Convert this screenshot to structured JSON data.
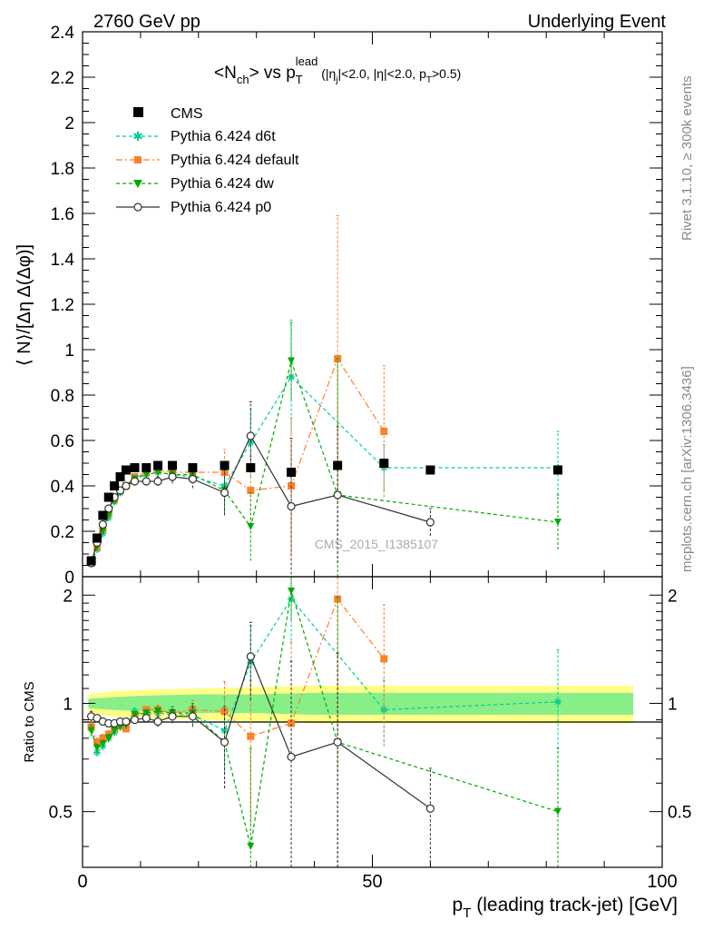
{
  "header": {
    "left": "2760 GeV pp",
    "right": "Underlying Event",
    "rivet": "Rivet 3.1.10, ≥ 300k events",
    "mcplots": "mcplots.cern.ch [arXiv:1306.3436]",
    "watermark": "CMS_2015_I1385107"
  },
  "chart_data": [
    {
      "panel": "main",
      "type": "line",
      "title": {
        "a": "<N",
        "a_sub": "ch",
        "b": "> vs p",
        "b_sub": "T",
        "b_sup": "lead",
        "c1": " (|η",
        "c1_sub": "j",
        "c2": "|<2.0, |η|<2.0, p",
        "c2_sub": "T",
        "c3": ">0.5)"
      },
      "ylabel": "⟨ N⟩/[Δη Δ(Δφ)]",
      "xlim": [
        0,
        100
      ],
      "ylim": [
        0,
        2.4
      ],
      "yticks": [
        "0",
        "0.2",
        "0.4",
        "0.6",
        "0.8",
        "1",
        "1.2",
        "1.4",
        "1.6",
        "1.8",
        "2",
        "2.2",
        "2.4"
      ],
      "legend_position": "top-left",
      "series": [
        {
          "name": "CMS",
          "color": "#000000",
          "marker": "square",
          "x": [
            1.5,
            2.5,
            3.5,
            4.5,
            5.5,
            6.5,
            7.5,
            9,
            11,
            13,
            15.5,
            19,
            24.5,
            29,
            36,
            44,
            52,
            60,
            82
          ],
          "y": [
            0.07,
            0.17,
            0.27,
            0.35,
            0.4,
            0.44,
            0.47,
            0.48,
            0.48,
            0.49,
            0.49,
            0.48,
            0.49,
            0.48,
            0.46,
            0.49,
            0.5,
            0.47,
            0.47
          ]
        },
        {
          "name": "Pythia 6.424 d6t",
          "color": "#00cc99",
          "marker": "star",
          "x": [
            1.5,
            2.5,
            3.5,
            4.5,
            5.5,
            6.5,
            7.5,
            9,
            11,
            13,
            15.5,
            19,
            24.5,
            29,
            36,
            52,
            82
          ],
          "y": [
            0.06,
            0.12,
            0.19,
            0.26,
            0.33,
            0.37,
            0.4,
            0.44,
            0.45,
            0.46,
            0.45,
            0.44,
            0.4,
            0.59,
            0.88,
            0.48,
            0.48
          ],
          "yerr": [
            0.01,
            0.01,
            0.01,
            0.01,
            0.01,
            0.01,
            0.01,
            0.01,
            0.01,
            0.01,
            0.02,
            0.03,
            0.07,
            0.15,
            0.25,
            0.1,
            0.16
          ]
        },
        {
          "name": "Pythia 6.424 default",
          "color": "#ff7f2a",
          "marker": "square",
          "x": [
            1.5,
            2.5,
            3.5,
            4.5,
            5.5,
            6.5,
            7.5,
            9,
            11,
            13,
            15.5,
            19,
            24.5,
            29,
            36,
            44,
            52
          ],
          "y": [
            0.06,
            0.13,
            0.21,
            0.28,
            0.34,
            0.38,
            0.4,
            0.44,
            0.46,
            0.47,
            0.46,
            0.46,
            0.46,
            0.38,
            0.4,
            0.96,
            0.64
          ],
          "yerr": [
            0.01,
            0.01,
            0.01,
            0.01,
            0.01,
            0.01,
            0.01,
            0.01,
            0.01,
            0.02,
            0.02,
            0.03,
            0.1,
            0.15,
            0.3,
            0.63,
            0.29
          ]
        },
        {
          "name": "Pythia 6.424 dw",
          "color": "#00aa00",
          "marker": "triangle-down",
          "x": [
            1.5,
            2.5,
            3.5,
            4.5,
            5.5,
            6.5,
            7.5,
            9,
            11,
            13,
            15.5,
            19,
            24.5,
            29,
            36,
            44,
            82
          ],
          "y": [
            0.06,
            0.13,
            0.2,
            0.27,
            0.33,
            0.37,
            0.4,
            0.43,
            0.45,
            0.46,
            0.45,
            0.45,
            0.38,
            0.22,
            0.95,
            0.36,
            0.24
          ],
          "yerr": [
            0.01,
            0.01,
            0.01,
            0.01,
            0.01,
            0.01,
            0.01,
            0.01,
            0.01,
            0.02,
            0.03,
            0.04,
            0.1,
            0.15,
            0.17,
            0.6,
            0.12
          ]
        },
        {
          "name": "Pythia 6.424 p0",
          "color": "#333333",
          "marker": "circle-open",
          "x": [
            1.5,
            2.5,
            3.5,
            4.5,
            5.5,
            6.5,
            7.5,
            9,
            11,
            13,
            15.5,
            19,
            24.5,
            29,
            36,
            44,
            60
          ],
          "y": [
            0.06,
            0.15,
            0.23,
            0.3,
            0.35,
            0.38,
            0.4,
            0.42,
            0.42,
            0.42,
            0.44,
            0.43,
            0.37,
            0.62,
            0.31,
            0.36,
            0.24
          ],
          "yerr": [
            0.01,
            0.01,
            0.01,
            0.01,
            0.01,
            0.01,
            0.01,
            0.01,
            0.01,
            0.02,
            0.03,
            0.04,
            0.1,
            0.15,
            0.3,
            0.3,
            0.06
          ]
        }
      ]
    },
    {
      "panel": "ratio",
      "type": "line",
      "xlabel_main": "p",
      "xlabel_sub": "T",
      "xlabel_rest": " (leading track-jet) [GeV]",
      "ylabel": "Ratio to CMS",
      "xlim": [
        0,
        100
      ],
      "ylim": [
        0.35,
        2.25
      ],
      "yticks": [
        "0.5",
        "1",
        "2"
      ],
      "xticks": [
        "0",
        "50",
        "100"
      ],
      "band_inner": "#88ee88",
      "band_outer": "#ffff88",
      "series": [
        {
          "name": "Pythia 6.424 d6t",
          "color": "#00cc99",
          "marker": "star",
          "x": [
            1.5,
            2.5,
            3.5,
            4.5,
            5.5,
            6.5,
            7.5,
            9,
            11,
            13,
            15.5,
            19,
            24.5,
            29,
            36,
            52,
            82
          ],
          "y": [
            0.85,
            0.73,
            0.76,
            0.8,
            0.83,
            0.86,
            0.87,
            0.95,
            0.93,
            0.94,
            0.93,
            0.93,
            0.84,
            1.3,
            1.95,
            0.96,
            1.01
          ],
          "yerr": [
            0.03,
            0.02,
            0.02,
            0.02,
            0.02,
            0.02,
            0.02,
            0.02,
            0.02,
            0.03,
            0.04,
            0.06,
            0.2,
            0.35,
            0.5,
            0.2,
            0.4
          ]
        },
        {
          "name": "Pythia 6.424 default",
          "color": "#ff7f2a",
          "marker": "square",
          "x": [
            1.5,
            2.5,
            3.5,
            4.5,
            5.5,
            6.5,
            7.5,
            9,
            11,
            13,
            15.5,
            19,
            24.5,
            29,
            36,
            44,
            52
          ],
          "y": [
            0.86,
            0.78,
            0.8,
            0.82,
            0.85,
            0.87,
            0.85,
            0.92,
            0.96,
            0.96,
            0.94,
            0.96,
            0.95,
            0.81,
            0.88,
            1.95,
            1.33
          ],
          "yerr": [
            0.03,
            0.02,
            0.02,
            0.02,
            0.02,
            0.02,
            0.02,
            0.02,
            0.02,
            0.03,
            0.04,
            0.06,
            0.2,
            0.35,
            0.6,
            1.3,
            0.55
          ]
        },
        {
          "name": "Pythia 6.424 dw",
          "color": "#00aa00",
          "marker": "triangle-down",
          "x": [
            1.5,
            2.5,
            3.5,
            4.5,
            5.5,
            6.5,
            7.5,
            9,
            11,
            13,
            15.5,
            19,
            24.5,
            29,
            36,
            44,
            82
          ],
          "y": [
            0.84,
            0.75,
            0.77,
            0.8,
            0.84,
            0.86,
            0.87,
            0.93,
            0.94,
            0.95,
            0.94,
            0.94,
            0.78,
            0.4,
            2.05,
            0.78,
            0.5
          ],
          "yerr": [
            0.03,
            0.02,
            0.02,
            0.02,
            0.02,
            0.02,
            0.02,
            0.02,
            0.02,
            0.03,
            0.04,
            0.06,
            0.2,
            0.35,
            0.35,
            1.2,
            0.25
          ]
        },
        {
          "name": "Pythia 6.424 p0",
          "color": "#333333",
          "marker": "circle-open",
          "x": [
            1.5,
            2.5,
            3.5,
            4.5,
            5.5,
            6.5,
            7.5,
            9,
            11,
            13,
            15.5,
            19,
            24.5,
            29,
            36,
            44,
            60
          ],
          "y": [
            0.92,
            0.91,
            0.89,
            0.88,
            0.88,
            0.89,
            0.89,
            0.9,
            0.91,
            0.89,
            0.92,
            0.92,
            0.78,
            1.35,
            0.71,
            0.78,
            0.51
          ],
          "yerr": [
            0.03,
            0.02,
            0.02,
            0.02,
            0.02,
            0.02,
            0.02,
            0.02,
            0.02,
            0.03,
            0.04,
            0.06,
            0.2,
            0.33,
            0.6,
            0.6,
            0.15
          ]
        }
      ]
    }
  ]
}
